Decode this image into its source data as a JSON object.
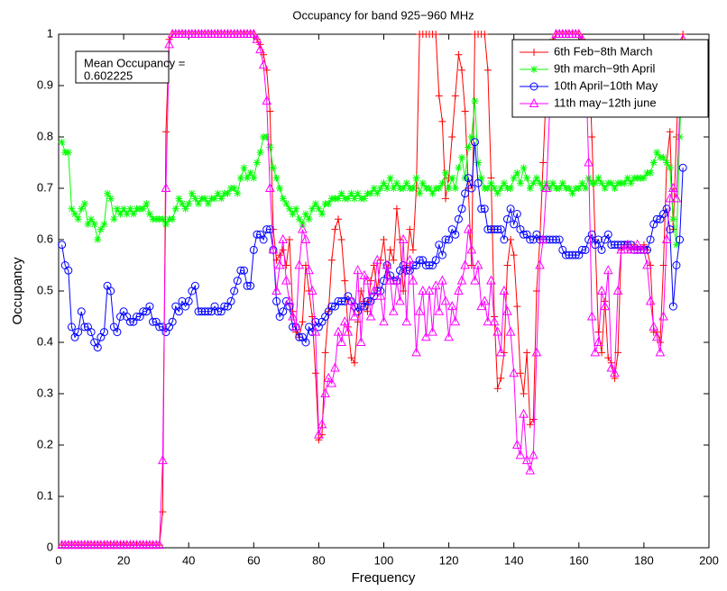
{
  "chart_data": {
    "type": "line",
    "title": "Occupancy for band 925−960 MHz",
    "x_label": "Frequency",
    "y_label": "Occupancy",
    "annotation": [
      "Mean Occupancy =",
      "0.602225"
    ],
    "legend_loc": "upper right",
    "xlim": [
      0,
      200
    ],
    "xticks": [
      0,
      20,
      40,
      60,
      80,
      100,
      120,
      140,
      160,
      180,
      200
    ],
    "ylim": [
      0,
      1
    ],
    "yticks": [
      0,
      0.1,
      0.2,
      0.3,
      0.4,
      0.5,
      0.6,
      0.7,
      0.8,
      0.9,
      1
    ],
    "x": [
      1,
      2,
      3,
      4,
      5,
      6,
      7,
      8,
      9,
      10,
      11,
      12,
      13,
      14,
      15,
      16,
      17,
      18,
      19,
      20,
      21,
      22,
      23,
      24,
      25,
      26,
      27,
      28,
      29,
      30,
      31,
      32,
      33,
      34,
      35,
      36,
      37,
      38,
      39,
      40,
      41,
      42,
      43,
      44,
      45,
      46,
      47,
      48,
      49,
      50,
      51,
      52,
      53,
      54,
      55,
      56,
      57,
      58,
      59,
      60,
      61,
      62,
      63,
      64,
      65,
      66,
      67,
      68,
      69,
      70,
      71,
      72,
      73,
      74,
      75,
      76,
      77,
      78,
      79,
      80,
      81,
      82,
      83,
      84,
      85,
      86,
      87,
      88,
      89,
      90,
      91,
      92,
      93,
      94,
      95,
      96,
      97,
      98,
      99,
      100,
      101,
      102,
      103,
      104,
      105,
      106,
      107,
      108,
      109,
      110,
      111,
      112,
      113,
      114,
      115,
      116,
      117,
      118,
      119,
      120,
      121,
      122,
      123,
      124,
      125,
      126,
      127,
      128,
      129,
      130,
      131,
      132,
      133,
      134,
      135,
      136,
      137,
      138,
      139,
      140,
      141,
      142,
      143,
      144,
      145,
      146,
      147,
      148,
      149,
      150,
      151,
      152,
      153,
      154,
      155,
      156,
      157,
      158,
      159,
      160,
      161,
      162,
      163,
      164,
      165,
      166,
      167,
      168,
      169,
      170,
      171,
      172,
      173,
      174,
      175,
      176,
      177,
      178,
      179,
      180,
      181,
      182,
      183,
      184,
      185,
      186,
      187,
      188,
      189,
      190,
      191,
      192
    ],
    "series": [
      {
        "name": "6th Feb−8th March",
        "color": "#ff0000",
        "marker": "plus",
        "values": [
          0.005,
          0.005,
          0.005,
          0.005,
          0.005,
          0.005,
          0.005,
          0.005,
          0.005,
          0.005,
          0.005,
          0.005,
          0.005,
          0.005,
          0.005,
          0.005,
          0.005,
          0.005,
          0.005,
          0.005,
          0.005,
          0.005,
          0.005,
          0.005,
          0.005,
          0.005,
          0.005,
          0.005,
          0.005,
          0.005,
          0.005,
          0.07,
          0.81,
          0.99,
          1,
          1,
          1,
          1,
          1,
          1,
          1,
          1,
          1,
          1,
          1,
          1,
          1,
          1,
          1,
          1,
          1,
          1,
          1,
          1,
          1,
          1,
          1,
          1,
          1,
          1,
          0.99,
          0.98,
          0.96,
          0.93,
          0.85,
          0.62,
          0.56,
          0.57,
          0.58,
          0.55,
          0.6,
          0.46,
          0.42,
          0.41,
          0.44,
          0.55,
          0.5,
          0.45,
          0.34,
          0.21,
          0.22,
          0.38,
          0.46,
          0.56,
          0.62,
          0.64,
          0.6,
          0.52,
          0.43,
          0.37,
          0.36,
          0.44,
          0.5,
          0.48,
          0.46,
          0.52,
          0.55,
          0.5,
          0.56,
          0.6,
          0.53,
          0.58,
          0.56,
          0.66,
          0.6,
          0.5,
          0.55,
          0.62,
          0.58,
          0.7,
          1,
          1,
          1,
          1,
          1,
          1,
          0.88,
          0.83,
          0.68,
          0.72,
          0.8,
          0.88,
          0.96,
          0.93,
          0.85,
          0.7,
          0.55,
          1,
          1,
          1,
          1,
          0.93,
          0.72,
          0.45,
          0.31,
          0.33,
          0.38,
          0.55,
          0.6,
          0.57,
          0.47,
          0.34,
          0.3,
          0.38,
          0.24,
          0.25,
          0.5,
          0.6,
          0.75,
          0.9,
          0.97,
          0.99,
          1,
          1,
          1,
          1,
          1,
          1,
          1,
          1,
          0.99,
          0.98,
          0.97,
          0.8,
          0.6,
          0.42,
          0.38,
          0.48,
          0.37,
          0.36,
          0.33,
          0.38,
          0.58,
          0.59,
          0.59,
          0.58,
          0.59,
          0.58,
          0.58,
          0.59,
          0.58,
          0.55,
          0.42,
          0.42,
          0.4,
          0.55,
          0.75,
          0.81,
          0.62,
          0.8,
          0.96,
          1
        ]
      },
      {
        "name": "9th march−9th April",
        "color": "#00ff00",
        "marker": "star",
        "values": [
          0.79,
          0.77,
          0.77,
          0.66,
          0.65,
          0.64,
          0.66,
          0.67,
          0.63,
          0.64,
          0.63,
          0.6,
          0.62,
          0.63,
          0.69,
          0.68,
          0.64,
          0.66,
          0.65,
          0.66,
          0.65,
          0.66,
          0.65,
          0.66,
          0.66,
          0.66,
          0.67,
          0.65,
          0.64,
          0.64,
          0.64,
          0.64,
          0.63,
          0.64,
          0.64,
          0.66,
          0.68,
          0.67,
          0.66,
          0.67,
          0.69,
          0.68,
          0.67,
          0.68,
          0.68,
          0.67,
          0.68,
          0.68,
          0.69,
          0.68,
          0.69,
          0.69,
          0.7,
          0.7,
          0.69,
          0.72,
          0.74,
          0.72,
          0.73,
          0.72,
          0.75,
          0.77,
          0.8,
          0.8,
          0.78,
          0.74,
          0.72,
          0.7,
          0.68,
          0.67,
          0.66,
          0.65,
          0.66,
          0.64,
          0.63,
          0.65,
          0.64,
          0.66,
          0.67,
          0.66,
          0.65,
          0.67,
          0.67,
          0.68,
          0.68,
          0.68,
          0.69,
          0.68,
          0.68,
          0.69,
          0.68,
          0.69,
          0.68,
          0.68,
          0.69,
          0.69,
          0.7,
          0.69,
          0.7,
          0.71,
          0.7,
          0.72,
          0.7,
          0.71,
          0.7,
          0.7,
          0.71,
          0.7,
          0.7,
          0.72,
          0.69,
          0.71,
          0.7,
          0.7,
          0.69,
          0.7,
          0.7,
          0.71,
          0.73,
          0.7,
          0.72,
          0.7,
          0.74,
          0.76,
          0.72,
          0.78,
          0.8,
          0.87,
          0.75,
          0.72,
          0.7,
          0.7,
          0.71,
          0.7,
          0.69,
          0.7,
          0.71,
          0.7,
          0.7,
          0.72,
          0.73,
          0.71,
          0.74,
          0.72,
          0.7,
          0.71,
          0.72,
          0.71,
          0.7,
          0.71,
          0.7,
          0.71,
          0.7,
          0.7,
          0.71,
          0.7,
          0.7,
          0.69,
          0.7,
          0.7,
          0.71,
          0.7,
          0.72,
          0.71,
          0.71,
          0.72,
          0.71,
          0.7,
          0.71,
          0.71,
          0.7,
          0.71,
          0.71,
          0.71,
          0.72,
          0.71,
          0.72,
          0.72,
          0.72,
          0.72,
          0.73,
          0.73,
          0.75,
          0.77,
          0.76,
          0.76,
          0.75,
          0.74,
          0.64,
          0.59,
          0.8,
          0.98
        ]
      },
      {
        "name": "10th April−10th May",
        "color": "#0000ff",
        "marker": "circle",
        "values": [
          0.59,
          0.55,
          0.54,
          0.43,
          0.41,
          0.42,
          0.46,
          0.43,
          0.43,
          0.42,
          0.4,
          0.39,
          0.41,
          0.42,
          0.51,
          0.5,
          0.43,
          0.42,
          0.45,
          0.46,
          0.45,
          0.44,
          0.44,
          0.45,
          0.45,
          0.46,
          0.46,
          0.47,
          0.44,
          0.44,
          0.43,
          0.43,
          0.42,
          0.43,
          0.44,
          0.47,
          0.46,
          0.48,
          0.47,
          0.48,
          0.5,
          0.51,
          0.46,
          0.46,
          0.46,
          0.46,
          0.46,
          0.47,
          0.46,
          0.46,
          0.47,
          0.47,
          0.48,
          0.5,
          0.52,
          0.54,
          0.54,
          0.51,
          0.51,
          0.58,
          0.61,
          0.61,
          0.6,
          0.62,
          0.62,
          0.58,
          0.48,
          0.45,
          0.46,
          0.48,
          0.47,
          0.43,
          0.43,
          0.41,
          0.41,
          0.4,
          0.43,
          0.42,
          0.44,
          0.43,
          0.44,
          0.45,
          0.46,
          0.47,
          0.47,
          0.48,
          0.48,
          0.48,
          0.49,
          0.48,
          0.47,
          0.46,
          0.47,
          0.47,
          0.48,
          0.48,
          0.49,
          0.5,
          0.5,
          0.52,
          0.55,
          0.53,
          0.52,
          0.52,
          0.54,
          0.55,
          0.54,
          0.54,
          0.55,
          0.55,
          0.56,
          0.56,
          0.55,
          0.55,
          0.55,
          0.56,
          0.59,
          0.57,
          0.6,
          0.6,
          0.62,
          0.61,
          0.64,
          0.66,
          0.69,
          0.72,
          0.7,
          0.79,
          0.71,
          0.66,
          0.66,
          0.62,
          0.62,
          0.62,
          0.62,
          0.62,
          0.6,
          0.64,
          0.66,
          0.63,
          0.65,
          0.62,
          0.61,
          0.61,
          0.6,
          0.6,
          0.61,
          0.6,
          0.6,
          0.6,
          0.6,
          0.6,
          0.6,
          0.6,
          0.58,
          0.57,
          0.57,
          0.57,
          0.57,
          0.57,
          0.58,
          0.58,
          0.6,
          0.61,
          0.59,
          0.6,
          0.58,
          0.6,
          0.61,
          0.59,
          0.59,
          0.59,
          0.59,
          0.59,
          0.59,
          0.59,
          0.58,
          0.58,
          0.58,
          0.58,
          0.58,
          0.6,
          0.63,
          0.64,
          0.64,
          0.65,
          0.66,
          0.62,
          0.47,
          0.55,
          0.6,
          0.74
        ]
      },
      {
        "name": "11th may−12th june",
        "color": "#ff00ff",
        "marker": "triangle",
        "values": [
          0.005,
          0.005,
          0.005,
          0.005,
          0.005,
          0.005,
          0.005,
          0.005,
          0.005,
          0.005,
          0.005,
          0.005,
          0.005,
          0.005,
          0.005,
          0.005,
          0.005,
          0.005,
          0.005,
          0.005,
          0.005,
          0.005,
          0.005,
          0.005,
          0.005,
          0.005,
          0.005,
          0.005,
          0.005,
          0.005,
          0.005,
          0.17,
          0.7,
          0.98,
          1,
          1,
          1,
          1,
          1,
          1,
          1,
          1,
          1,
          1,
          1,
          1,
          1,
          1,
          1,
          1,
          1,
          1,
          1,
          1,
          1,
          1,
          1,
          1,
          1,
          1,
          0.99,
          0.97,
          0.94,
          0.87,
          0.7,
          0.58,
          0.5,
          0.55,
          0.6,
          0.52,
          0.48,
          0.45,
          0.43,
          0.55,
          0.62,
          0.6,
          0.54,
          0.5,
          0.42,
          0.22,
          0.24,
          0.3,
          0.33,
          0.32,
          0.35,
          0.42,
          0.4,
          0.44,
          0.42,
          0.48,
          0.45,
          0.54,
          0.4,
          0.53,
          0.52,
          0.45,
          0.5,
          0.56,
          0.49,
          0.44,
          0.55,
          0.52,
          0.46,
          0.52,
          0.48,
          0.6,
          0.44,
          0.56,
          0.52,
          0.38,
          0.46,
          0.5,
          0.41,
          0.5,
          0.42,
          0.51,
          0.46,
          0.52,
          0.48,
          0.41,
          0.47,
          0.44,
          0.5,
          0.52,
          0.55,
          0.62,
          0.58,
          0.52,
          0.55,
          0.47,
          0.48,
          0.44,
          0.52,
          0.44,
          0.42,
          0.38,
          0.5,
          0.46,
          0.42,
          0.34,
          0.2,
          0.18,
          0.26,
          0.17,
          0.15,
          0.18,
          0.38,
          0.55,
          0.6,
          0.7,
          0.85,
          0.98,
          1,
          1,
          1,
          1,
          1,
          1,
          1,
          1,
          0.99,
          0.96,
          0.75,
          0.45,
          0.38,
          0.4,
          0.5,
          0.47,
          0.54,
          0.35,
          0.34,
          0.5,
          0.58,
          0.58,
          0.59,
          0.58,
          0.58,
          0.59,
          0.58,
          0.58,
          0.55,
          0.48,
          0.43,
          0.41,
          0.38,
          0.45,
          0.6,
          0.68,
          0.7,
          0.68,
          0.85,
          0.99
        ]
      }
    ]
  }
}
